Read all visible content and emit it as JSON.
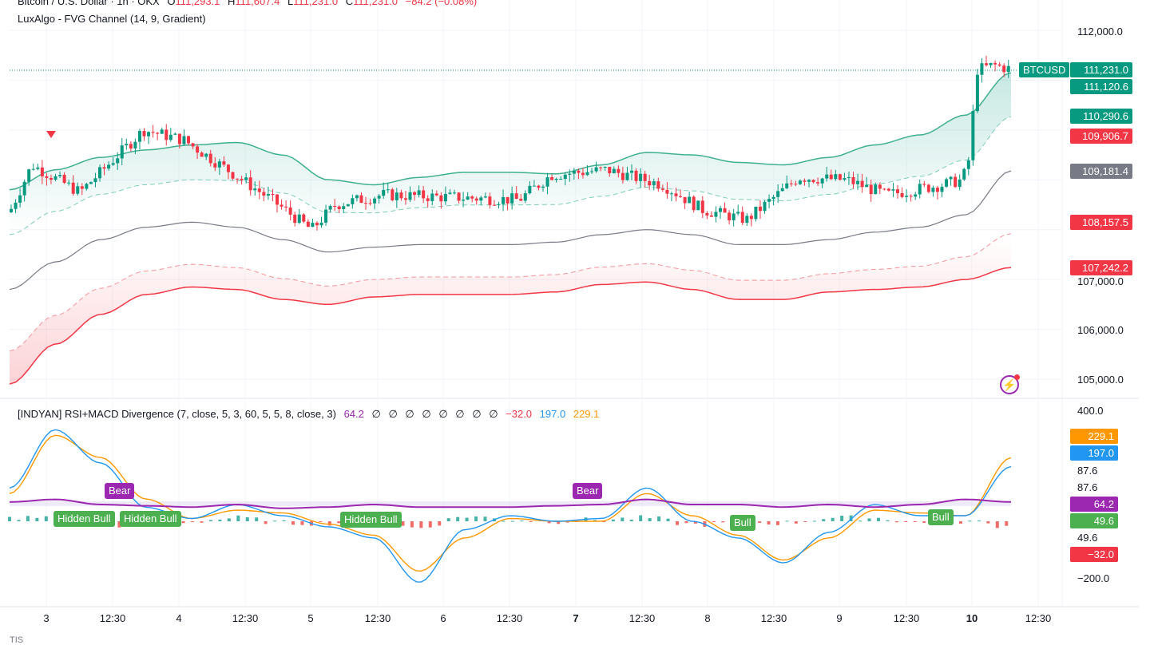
{
  "header": {
    "symbol_desc": "Bitcoin / U.S. Dollar · 1h · OKX",
    "ohlc": {
      "o_label": "O",
      "o": "111,293.1",
      "h_label": "H",
      "h": "111,607.4",
      "l_label": "L",
      "l": "111,231.0",
      "c_label": "C",
      "c": "111,231.0",
      "change": "−84.2 (−0.08%)"
    },
    "indicator1": "LuxAlgo - FVG Channel (14, 9, Gradient)"
  },
  "price_axis": {
    "ticks": [
      "112,000.0",
      "107,000.0",
      "106,000.0",
      "105,000.0"
    ],
    "badges": [
      {
        "text": "BTCUSD",
        "color": "#089981"
      },
      {
        "text": "111,231.0",
        "color": "#089981"
      },
      {
        "text": "111,120.6",
        "color": "#089981"
      },
      {
        "text": "110,290.6",
        "color": "#089981"
      },
      {
        "text": "109,906.7",
        "color": "#f23645"
      },
      {
        "text": "109,181.4",
        "color": "#787b86"
      },
      {
        "text": "108,157.5",
        "color": "#f23645"
      },
      {
        "text": "107,242.2",
        "color": "#f23645"
      }
    ]
  },
  "osc_pane": {
    "title": "[INDYAN] RSI+MACD Divergence (7, close, 5, 3, 60, 5, 5, 8, close, 3)",
    "values": {
      "rsi": "64.2",
      "empties": [
        "∅",
        "∅",
        "∅",
        "∅",
        "∅",
        "∅",
        "∅",
        "∅"
      ],
      "hist": "−32.0",
      "macd": "197.0",
      "signal": "229.1"
    },
    "axis_ticks": [
      "400.0",
      "87.6",
      "87.6",
      "49.6",
      "−200.0"
    ],
    "badges": [
      {
        "text": "229.1",
        "color": "#ff9800"
      },
      {
        "text": "197.0",
        "color": "#2196f3"
      },
      {
        "text": "64.2",
        "color": "#9c27b0"
      },
      {
        "text": "49.6",
        "color": "#4caf50"
      },
      {
        "text": "−32.0",
        "color": "#f23645"
      }
    ],
    "signals": [
      {
        "text": "Bear",
        "color": "#9c27b0"
      },
      {
        "text": "Hidden Bull",
        "color": "#4caf50"
      },
      {
        "text": "Hidden Bull",
        "color": "#4caf50"
      },
      {
        "text": "Hidden Bull",
        "color": "#4caf50"
      },
      {
        "text": "Bear",
        "color": "#9c27b0"
      },
      {
        "text": "Bull",
        "color": "#4caf50"
      },
      {
        "text": "Bull",
        "color": "#4caf50"
      }
    ]
  },
  "time_axis": {
    "labels": [
      "3",
      "12:30",
      "4",
      "12:30",
      "5",
      "12:30",
      "6",
      "12:30",
      "7",
      "12:30",
      "8",
      "12:30",
      "9",
      "12:30",
      "10",
      "12:30"
    ],
    "bold": [
      false,
      false,
      false,
      false,
      false,
      false,
      false,
      false,
      true,
      false,
      false,
      false,
      false,
      false,
      true,
      false
    ]
  },
  "footer": {
    "text": "TIS"
  },
  "colors": {
    "up": "#089981",
    "down": "#f23645",
    "rsi": "#9c27b0",
    "macd": "#2196f3",
    "signal": "#ff9800",
    "band_top": "#3fb08f",
    "band_bottom": "#f23645",
    "mid": "#787b86"
  },
  "chart_data": {
    "type": "candlestick",
    "symbol": "BTCUSD",
    "interval": "1h",
    "ylim": [
      104600,
      112300
    ],
    "last_price": 111231.0,
    "series": [
      {
        "name": "FVG upper",
        "values": [
          108800,
          109200,
          109450,
          109600,
          109700,
          109750,
          109500,
          109000,
          108900,
          109050,
          109150,
          109150,
          109120,
          109300,
          109550,
          109500,
          109350,
          109300,
          109450,
          109700,
          109900,
          110300,
          111150
        ]
      },
      {
        "name": "FVG mid",
        "values": [
          106800,
          107350,
          107800,
          108050,
          108150,
          108050,
          107800,
          107550,
          107650,
          107700,
          107700,
          107700,
          107750,
          107900,
          108000,
          107900,
          107700,
          107700,
          107800,
          107950,
          108050,
          108300,
          109180
        ]
      },
      {
        "name": "FVG lower",
        "values": [
          104900,
          105700,
          106300,
          106700,
          106850,
          106800,
          106600,
          106500,
          106650,
          106700,
          106700,
          106700,
          106750,
          106900,
          106950,
          106800,
          106600,
          106600,
          106750,
          106800,
          106850,
          107000,
          107240
        ]
      },
      {
        "name": "RSI",
        "values": [
          64,
          66,
          62,
          61,
          60,
          62,
          59,
          60,
          62,
          60,
          60,
          60,
          61,
          62,
          66,
          62,
          62,
          60,
          62,
          60,
          62,
          66,
          64
        ]
      },
      {
        "name": "MACD",
        "values": [
          120,
          330,
          210,
          50,
          10,
          60,
          20,
          -20,
          -60,
          -220,
          -30,
          20,
          0,
          10,
          120,
          0,
          -60,
          -150,
          -40,
          60,
          20,
          20,
          197
        ]
      },
      {
        "name": "Signal",
        "values": [
          100,
          310,
          230,
          80,
          10,
          40,
          30,
          -10,
          -50,
          -180,
          -60,
          10,
          0,
          0,
          100,
          20,
          -50,
          -140,
          -60,
          40,
          30,
          20,
          229
        ]
      }
    ]
  }
}
